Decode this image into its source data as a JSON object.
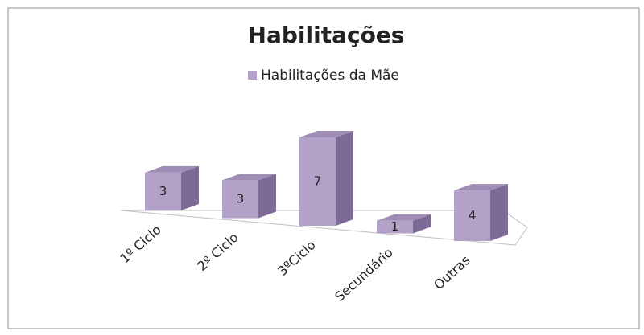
{
  "chart_data": {
    "type": "bar3d",
    "title": "Habilitações",
    "categories": [
      "1º Ciclo",
      "2º Ciclo",
      "3ºCiclo",
      "Secundário",
      "Outras"
    ],
    "series": [
      {
        "name": "Habilitações da Mãe",
        "color": "#b3a2c7",
        "values": [
          3,
          3,
          7,
          1,
          4
        ]
      }
    ],
    "legend": "top"
  }
}
